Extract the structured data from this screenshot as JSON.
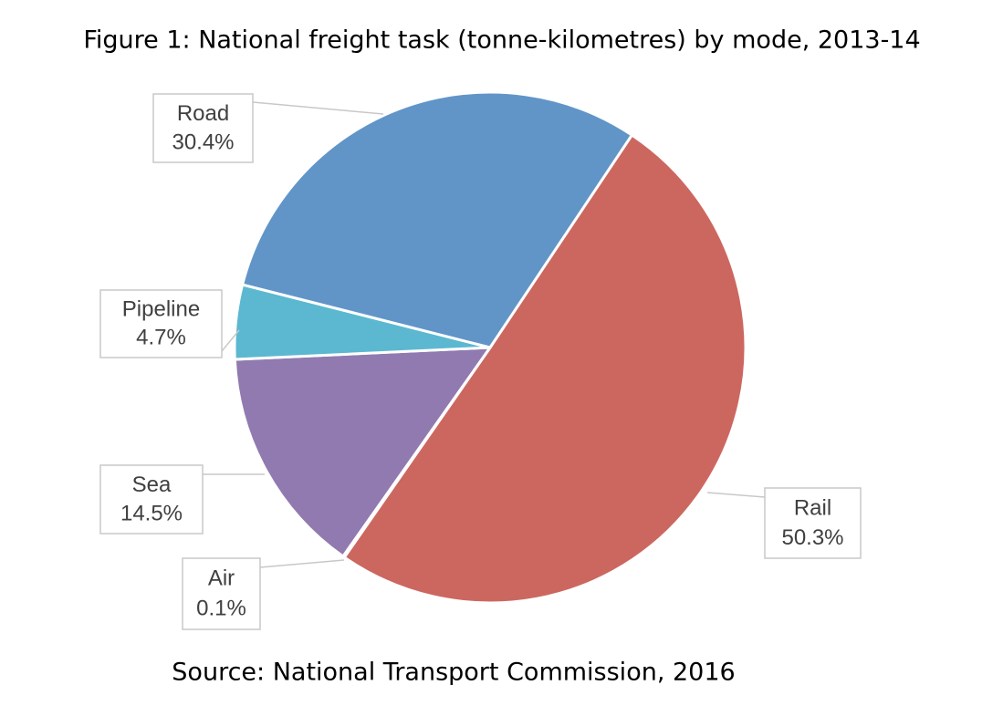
{
  "chart_data": {
    "type": "pie",
    "title": "Figure 1: National freight task (tonne-kilometres) by mode, 2013-14",
    "source": "Source: National Transport Commission, 2016",
    "categories": [
      "Rail",
      "Air",
      "Sea",
      "Pipeline",
      "Road"
    ],
    "values": [
      50.3,
      0.1,
      14.5,
      4.7,
      30.4
    ],
    "value_labels": [
      "50.3%",
      "0.1%",
      "14.5%",
      "4.7%",
      "30.4%"
    ],
    "colors": [
      "#cc6760",
      "#9bbb59",
      "#917ab0",
      "#5bb8d0",
      "#6195c8"
    ]
  }
}
